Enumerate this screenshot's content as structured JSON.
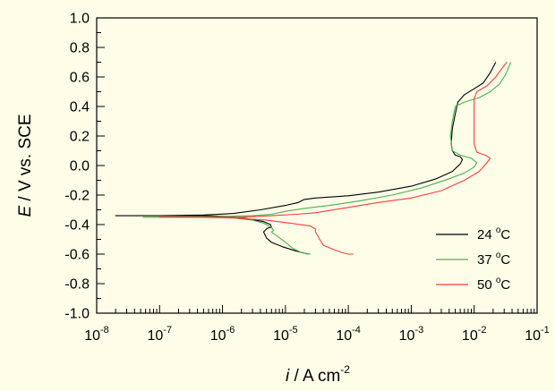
{
  "chart_data": {
    "type": "line",
    "xscale": "log",
    "xlim": [
      1e-08,
      0.1
    ],
    "ylim": [
      -1.0,
      1.0
    ],
    "grid": false,
    "legend_position": "bottom-right",
    "xlabel": {
      "italic": "i",
      "rest": " / A cm",
      "sup": "-2"
    },
    "ylabel": {
      "italic": "E",
      "rest": " / V vs. SCE"
    },
    "x_ticks": [
      {
        "value": 1e-08,
        "base": "10",
        "exp": "-8"
      },
      {
        "value": 1e-07,
        "base": "10",
        "exp": "-7"
      },
      {
        "value": 1e-06,
        "base": "10",
        "exp": "-6"
      },
      {
        "value": 1e-05,
        "base": "10",
        "exp": "-5"
      },
      {
        "value": 0.0001,
        "base": "10",
        "exp": "-4"
      },
      {
        "value": 0.001,
        "base": "10",
        "exp": "-3"
      },
      {
        "value": 0.01,
        "base": "10",
        "exp": "-2"
      },
      {
        "value": 0.1,
        "base": "10",
        "exp": "-1"
      }
    ],
    "y_ticks": [
      "1.0",
      "0.8",
      "0.6",
      "0.4",
      "0.2",
      "0.0",
      "-0.2",
      "-0.4",
      "-0.6",
      "-0.8",
      "-1.0"
    ],
    "series": [
      {
        "name": "24 °C",
        "label_base": "24 ",
        "label_sup": "o",
        "label_unit": "C",
        "color": "#000000",
        "points": [
          [
            2.3e-05,
            -0.6
          ],
          [
            1.5e-05,
            -0.58
          ],
          [
            9e-06,
            -0.55
          ],
          [
            6e-06,
            -0.52
          ],
          [
            5e-06,
            -0.49
          ],
          [
            4.5e-06,
            -0.45
          ],
          [
            5e-06,
            -0.43
          ],
          [
            5.5e-06,
            -0.42
          ],
          [
            6e-06,
            -0.42
          ],
          [
            5.8e-06,
            -0.4
          ],
          [
            4.5e-06,
            -0.38
          ],
          [
            2.5e-06,
            -0.36
          ],
          [
            1.2e-06,
            -0.345
          ],
          [
            5e-07,
            -0.34
          ],
          [
            1e-07,
            -0.34
          ],
          [
            2e-08,
            -0.34
          ],
          [
            1e-07,
            -0.34
          ],
          [
            5e-07,
            -0.335
          ],
          [
            1.5e-06,
            -0.325
          ],
          [
            4e-06,
            -0.3
          ],
          [
            1e-05,
            -0.27
          ],
          [
            1.6e-05,
            -0.25
          ],
          [
            2e-05,
            -0.23
          ],
          [
            3e-05,
            -0.22
          ],
          [
            0.0001,
            -0.205
          ],
          [
            0.0003,
            -0.18
          ],
          [
            0.001,
            -0.14
          ],
          [
            0.0025,
            -0.09
          ],
          [
            0.0045,
            -0.04
          ],
          [
            0.006,
            0.01
          ],
          [
            0.0065,
            0.04
          ],
          [
            0.006,
            0.06
          ],
          [
            0.005,
            0.07
          ],
          [
            0.0045,
            0.1
          ],
          [
            0.0043,
            0.15
          ],
          [
            0.0045,
            0.25
          ],
          [
            0.005,
            0.35
          ],
          [
            0.0055,
            0.43
          ],
          [
            0.007,
            0.48
          ],
          [
            0.01,
            0.52
          ],
          [
            0.014,
            0.56
          ],
          [
            0.018,
            0.63
          ],
          [
            0.022,
            0.7
          ]
        ]
      },
      {
        "name": "37 °C",
        "label_base": "37 ",
        "label_sup": "o",
        "label_unit": "C",
        "color": "#4caf50",
        "points": [
          [
            2.5e-05,
            -0.6
          ],
          [
            1.8e-05,
            -0.59
          ],
          [
            1.3e-05,
            -0.56
          ],
          [
            1e-05,
            -0.52
          ],
          [
            7.5e-06,
            -0.48
          ],
          [
            6e-06,
            -0.45
          ],
          [
            6.5e-06,
            -0.44
          ],
          [
            6e-06,
            -0.42
          ],
          [
            4.5e-06,
            -0.39
          ],
          [
            3e-06,
            -0.37
          ],
          [
            1.5e-06,
            -0.355
          ],
          [
            6e-07,
            -0.35
          ],
          [
            1e-07,
            -0.35
          ],
          [
            5.5e-08,
            -0.35
          ],
          [
            1e-07,
            -0.35
          ],
          [
            1e-06,
            -0.345
          ],
          [
            3e-06,
            -0.34
          ],
          [
            6e-06,
            -0.33
          ],
          [
            1e-05,
            -0.31
          ],
          [
            2e-05,
            -0.29
          ],
          [
            5e-05,
            -0.27
          ],
          [
            0.00015,
            -0.24
          ],
          [
            0.0005,
            -0.2
          ],
          [
            0.0015,
            -0.15
          ],
          [
            0.004,
            -0.09
          ],
          [
            0.007,
            -0.05
          ],
          [
            0.01,
            -0.01
          ],
          [
            0.011,
            0.02
          ],
          [
            0.009,
            0.05
          ],
          [
            0.006,
            0.07
          ],
          [
            0.0045,
            0.1
          ],
          [
            0.0042,
            0.2
          ],
          [
            0.0045,
            0.3
          ],
          [
            0.005,
            0.4
          ],
          [
            0.007,
            0.43
          ],
          [
            0.012,
            0.46
          ],
          [
            0.018,
            0.5
          ],
          [
            0.025,
            0.55
          ],
          [
            0.032,
            0.62
          ],
          [
            0.038,
            0.7
          ]
        ]
      },
      {
        "name": "50 °C",
        "label_base": "50 ",
        "label_sup": "o",
        "label_unit": "C",
        "color": "#ff3b3b",
        "points": [
          [
            0.00012,
            -0.6
          ],
          [
            0.0001,
            -0.6
          ],
          [
            8e-05,
            -0.59
          ],
          [
            6e-05,
            -0.57
          ],
          [
            4e-05,
            -0.54
          ],
          [
            3.5e-05,
            -0.5
          ],
          [
            3.2e-05,
            -0.47
          ],
          [
            3e-05,
            -0.45
          ],
          [
            3e-05,
            -0.43
          ],
          [
            2.5e-05,
            -0.41
          ],
          [
            1.2e-05,
            -0.39
          ],
          [
            5e-06,
            -0.37
          ],
          [
            1.5e-06,
            -0.355
          ],
          [
            4e-07,
            -0.35
          ],
          [
            1e-07,
            -0.35
          ],
          [
            5e-07,
            -0.35
          ],
          [
            2e-06,
            -0.35
          ],
          [
            6e-06,
            -0.34
          ],
          [
            1.5e-05,
            -0.33
          ],
          [
            3e-05,
            -0.32
          ],
          [
            8e-05,
            -0.29
          ],
          [
            0.0003,
            -0.25
          ],
          [
            0.001,
            -0.22
          ],
          [
            0.003,
            -0.17
          ],
          [
            0.007,
            -0.1
          ],
          [
            0.012,
            -0.04
          ],
          [
            0.016,
            0.02
          ],
          [
            0.018,
            0.05
          ],
          [
            0.015,
            0.07
          ],
          [
            0.011,
            0.09
          ],
          [
            0.01,
            0.15
          ],
          [
            0.01,
            0.3
          ],
          [
            0.01,
            0.45
          ],
          [
            0.011,
            0.5
          ],
          [
            0.016,
            0.54
          ],
          [
            0.022,
            0.6
          ],
          [
            0.028,
            0.66
          ],
          [
            0.033,
            0.7
          ]
        ]
      }
    ]
  }
}
